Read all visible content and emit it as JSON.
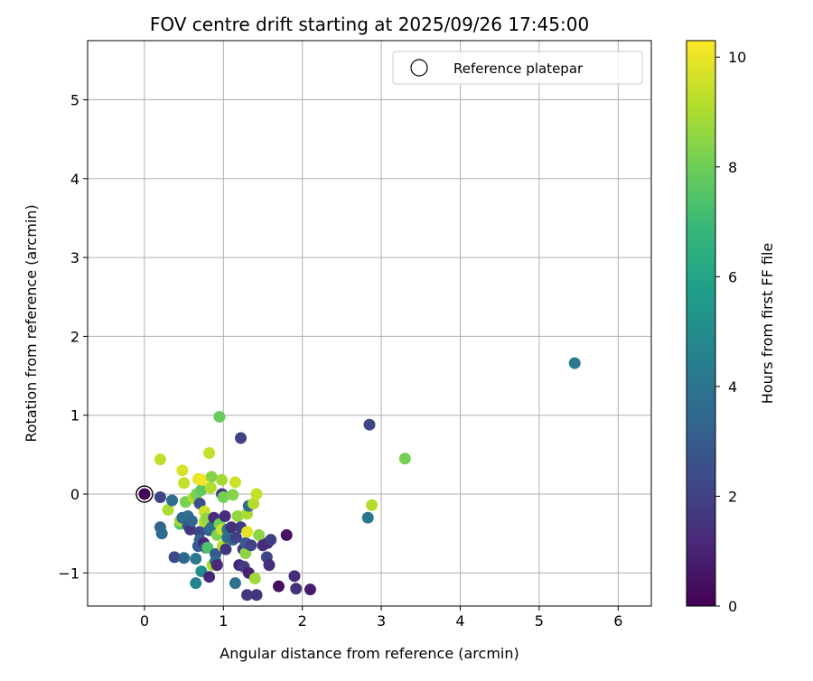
{
  "chart_data": {
    "type": "scatter",
    "title": "FOV centre drift starting at 2025/09/26 17:45:00",
    "xlabel": "Angular distance from reference (arcmin)",
    "ylabel": "Rotation from reference (arcmin)",
    "xlim": [
      -0.72,
      6.42
    ],
    "ylim": [
      -1.42,
      5.75
    ],
    "xticks": [
      0,
      1,
      2,
      3,
      4,
      5,
      6
    ],
    "xtick_labels": [
      "0",
      "1",
      "2",
      "3",
      "4",
      "5",
      "6"
    ],
    "yticks": [
      -1,
      0,
      1,
      2,
      3,
      4,
      5
    ],
    "ytick_labels": [
      "−1",
      "0",
      "1",
      "2",
      "3",
      "4",
      "5"
    ],
    "grid": true,
    "legend": {
      "position": "top-right",
      "entries": [
        {
          "label": "Reference platepar",
          "marker": "open-circle"
        }
      ]
    },
    "reference_point": {
      "x": 0,
      "y": 0
    },
    "colorbar": {
      "label": "Hours from first FF file",
      "range": [
        0,
        10.3
      ],
      "ticks": [
        0,
        2,
        4,
        6,
        8,
        10
      ],
      "tick_labels": [
        "0",
        "2",
        "4",
        "6",
        "8",
        "10"
      ],
      "colormap": "viridis",
      "stops": [
        "#440154",
        "#482878",
        "#3e4989",
        "#31688e",
        "#26828e",
        "#1f9e89",
        "#35b779",
        "#6ece58",
        "#b5de2b",
        "#fde725"
      ]
    },
    "series": [
      {
        "points": [
          {
            "x": 0.0,
            "y": 0.0,
            "c": 0.1
          },
          {
            "x": 0.2,
            "y": -0.04,
            "c": 2.2
          },
          {
            "x": 0.2,
            "y": 0.44,
            "c": 9.3
          },
          {
            "x": 0.2,
            "y": -0.42,
            "c": 3.3
          },
          {
            "x": 0.22,
            "y": -0.5,
            "c": 3.5
          },
          {
            "x": 0.3,
            "y": -0.2,
            "c": 9.0
          },
          {
            "x": 0.35,
            "y": -0.08,
            "c": 3.6
          },
          {
            "x": 0.38,
            "y": -0.8,
            "c": 2.3
          },
          {
            "x": 0.45,
            "y": -0.38,
            "c": 7.5
          },
          {
            "x": 0.45,
            "y": -0.34,
            "c": 8.8
          },
          {
            "x": 0.48,
            "y": -0.3,
            "c": 3.6
          },
          {
            "x": 0.48,
            "y": 0.3,
            "c": 9.7
          },
          {
            "x": 0.5,
            "y": 0.14,
            "c": 9.4
          },
          {
            "x": 0.5,
            "y": -0.81,
            "c": 3.4
          },
          {
            "x": 0.52,
            "y": -0.1,
            "c": 8.2
          },
          {
            "x": 0.55,
            "y": -0.28,
            "c": 3.7
          },
          {
            "x": 0.55,
            "y": -0.4,
            "c": 3.0
          },
          {
            "x": 0.58,
            "y": -0.45,
            "c": 1.6
          },
          {
            "x": 0.6,
            "y": -0.34,
            "c": 3.4
          },
          {
            "x": 0.62,
            "y": -0.05,
            "c": 9.1
          },
          {
            "x": 0.65,
            "y": -0.82,
            "c": 4.1
          },
          {
            "x": 0.65,
            "y": -1.13,
            "c": 4.6
          },
          {
            "x": 0.66,
            "y": 0.0,
            "c": 8.1
          },
          {
            "x": 0.68,
            "y": 0.19,
            "c": 9.9
          },
          {
            "x": 0.68,
            "y": -0.66,
            "c": 2.9
          },
          {
            "x": 0.7,
            "y": -0.12,
            "c": 2.6
          },
          {
            "x": 0.7,
            "y": -0.48,
            "c": 2.2
          },
          {
            "x": 0.7,
            "y": -0.58,
            "c": 3.3
          },
          {
            "x": 0.72,
            "y": 0.05,
            "c": 7.7
          },
          {
            "x": 0.72,
            "y": -0.98,
            "c": 5.0
          },
          {
            "x": 0.73,
            "y": 0.18,
            "c": 10.1
          },
          {
            "x": 0.75,
            "y": -0.62,
            "c": 1.3
          },
          {
            "x": 0.76,
            "y": -0.35,
            "c": 9.2
          },
          {
            "x": 0.76,
            "y": -0.22,
            "c": 9.5
          },
          {
            "x": 0.78,
            "y": -0.31,
            "c": 8.6
          },
          {
            "x": 0.78,
            "y": -0.68,
            "c": 2.7
          },
          {
            "x": 0.8,
            "y": -0.68,
            "c": 7.4
          },
          {
            "x": 0.82,
            "y": 0.52,
            "c": 9.4
          },
          {
            "x": 0.82,
            "y": -0.46,
            "c": 3.2
          },
          {
            "x": 0.82,
            "y": -1.05,
            "c": 1.1
          },
          {
            "x": 0.84,
            "y": 0.08,
            "c": 9.1
          },
          {
            "x": 0.85,
            "y": 0.22,
            "c": 8.4
          },
          {
            "x": 0.85,
            "y": -0.42,
            "c": 3.8
          },
          {
            "x": 0.86,
            "y": -0.9,
            "c": 9.0
          },
          {
            "x": 0.88,
            "y": -0.3,
            "c": 1.4
          },
          {
            "x": 0.9,
            "y": -0.76,
            "c": 2.9
          },
          {
            "x": 0.9,
            "y": -0.85,
            "c": 3.6
          },
          {
            "x": 0.92,
            "y": -0.52,
            "c": 8.3
          },
          {
            "x": 0.92,
            "y": -0.9,
            "c": 1.2
          },
          {
            "x": 0.95,
            "y": 0.98,
            "c": 7.9
          },
          {
            "x": 0.95,
            "y": -0.38,
            "c": 8.0
          },
          {
            "x": 0.98,
            "y": -0.45,
            "c": 9.6
          },
          {
            "x": 0.98,
            "y": 0.18,
            "c": 8.9
          },
          {
            "x": 0.98,
            "y": 0.0,
            "c": 1.9
          },
          {
            "x": 0.99,
            "y": -0.66,
            "c": 9.2
          },
          {
            "x": 1.0,
            "y": -0.04,
            "c": 8.1
          },
          {
            "x": 1.02,
            "y": -0.28,
            "c": 1.3
          },
          {
            "x": 1.03,
            "y": -0.7,
            "c": 1.6
          },
          {
            "x": 1.05,
            "y": -0.45,
            "c": 4.0
          },
          {
            "x": 1.05,
            "y": -0.55,
            "c": 3.7
          },
          {
            "x": 1.1,
            "y": -0.42,
            "c": 1.5
          },
          {
            "x": 1.12,
            "y": -0.01,
            "c": 8.4
          },
          {
            "x": 1.12,
            "y": -0.58,
            "c": 3.3
          },
          {
            "x": 1.15,
            "y": 0.15,
            "c": 9.5
          },
          {
            "x": 1.15,
            "y": -1.13,
            "c": 3.9
          },
          {
            "x": 1.16,
            "y": -0.55,
            "c": 2.0
          },
          {
            "x": 1.18,
            "y": -0.28,
            "c": 8.6
          },
          {
            "x": 1.2,
            "y": -0.9,
            "c": 1.1
          },
          {
            "x": 1.22,
            "y": 0.71,
            "c": 2.0
          },
          {
            "x": 1.22,
            "y": -0.42,
            "c": 1.8
          },
          {
            "x": 1.25,
            "y": -0.7,
            "c": 1.5
          },
          {
            "x": 1.26,
            "y": -0.92,
            "c": 1.9
          },
          {
            "x": 1.28,
            "y": -0.75,
            "c": 8.5
          },
          {
            "x": 1.28,
            "y": -0.62,
            "c": 3.0
          },
          {
            "x": 1.3,
            "y": -0.25,
            "c": 9.0
          },
          {
            "x": 1.3,
            "y": -1.28,
            "c": 1.7
          },
          {
            "x": 1.3,
            "y": -0.48,
            "c": 9.9
          },
          {
            "x": 1.32,
            "y": -1.0,
            "c": 1.0
          },
          {
            "x": 1.32,
            "y": -0.15,
            "c": 3.6
          },
          {
            "x": 1.35,
            "y": -0.65,
            "c": 2.1
          },
          {
            "x": 1.38,
            "y": -0.12,
            "c": 9.1
          },
          {
            "x": 1.4,
            "y": -1.07,
            "c": 8.8
          },
          {
            "x": 1.42,
            "y": 0.0,
            "c": 9.4
          },
          {
            "x": 1.42,
            "y": -1.28,
            "c": 1.6
          },
          {
            "x": 1.45,
            "y": -0.52,
            "c": 8.5
          },
          {
            "x": 1.5,
            "y": -0.65,
            "c": 1.4
          },
          {
            "x": 1.55,
            "y": -0.8,
            "c": 2.2
          },
          {
            "x": 1.56,
            "y": -0.62,
            "c": 1.2
          },
          {
            "x": 1.58,
            "y": -0.9,
            "c": 1.3
          },
          {
            "x": 1.6,
            "y": -0.58,
            "c": 1.9
          },
          {
            "x": 1.7,
            "y": -1.17,
            "c": 0.4
          },
          {
            "x": 1.8,
            "y": -0.52,
            "c": 0.5
          },
          {
            "x": 1.9,
            "y": -1.04,
            "c": 1.3
          },
          {
            "x": 1.92,
            "y": -1.2,
            "c": 1.5
          },
          {
            "x": 2.1,
            "y": -1.21,
            "c": 0.8
          },
          {
            "x": 2.83,
            "y": -0.3,
            "c": 4.0
          },
          {
            "x": 2.85,
            "y": 0.88,
            "c": 2.2
          },
          {
            "x": 2.88,
            "y": -0.14,
            "c": 9.1
          },
          {
            "x": 3.3,
            "y": 0.45,
            "c": 8.1
          },
          {
            "x": 5.45,
            "y": 1.66,
            "c": 4.1
          }
        ]
      }
    ]
  }
}
